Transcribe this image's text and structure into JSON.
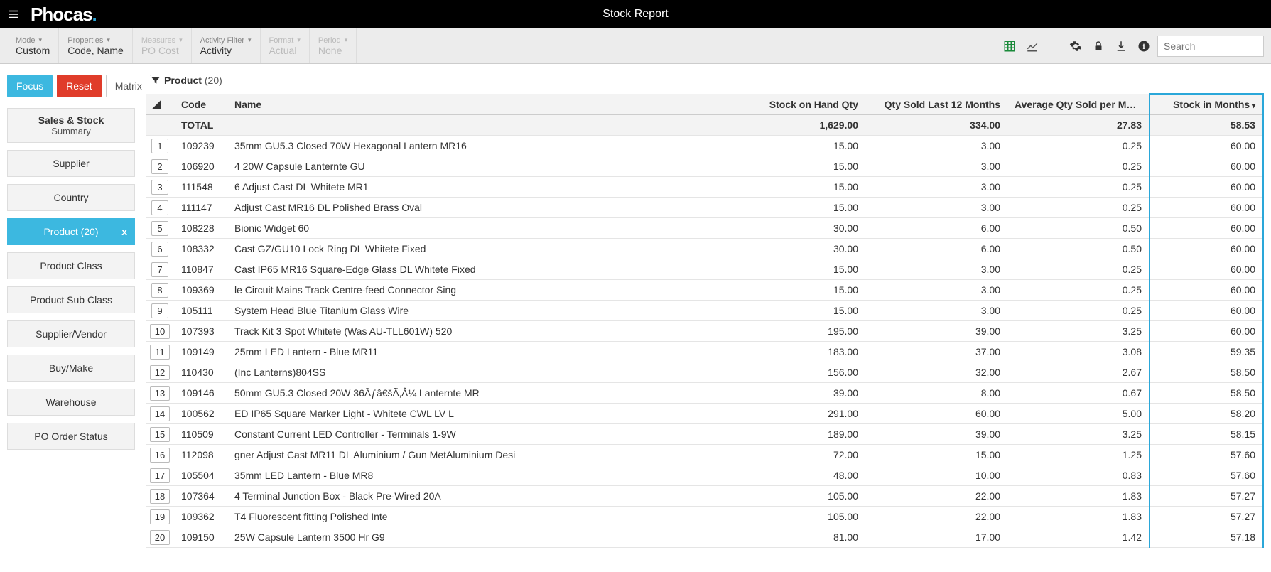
{
  "header": {
    "logo_text": "Phocas",
    "logo_accent": ".",
    "title": "Stock Report"
  },
  "toolbar": {
    "groups": [
      {
        "label": "Mode",
        "value": "Custom",
        "disabled": false
      },
      {
        "label": "Properties",
        "value": "Code, Name",
        "disabled": false
      },
      {
        "label": "Measures",
        "value": "PO Cost",
        "disabled": true
      },
      {
        "label": "Activity Filter",
        "value": "Activity",
        "disabled": false
      },
      {
        "label": "Format",
        "value": "Actual",
        "disabled": true
      },
      {
        "label": "Period",
        "value": "None",
        "disabled": true
      }
    ],
    "search_placeholder": "Search"
  },
  "buttons": {
    "focus": "Focus",
    "reset": "Reset",
    "matrix": "Matrix"
  },
  "sidebar": {
    "header_title": "Sales & Stock",
    "header_sub": "Summary",
    "items": [
      {
        "label": "Supplier",
        "active": false
      },
      {
        "label": "Country",
        "active": false
      },
      {
        "label": "Product (20)",
        "active": true
      },
      {
        "label": "Product Class",
        "active": false
      },
      {
        "label": "Product Sub Class",
        "active": false
      },
      {
        "label": "Supplier/Vendor",
        "active": false
      },
      {
        "label": "Buy/Make",
        "active": false
      },
      {
        "label": "Warehouse",
        "active": false
      },
      {
        "label": "PO Order Status",
        "active": false
      }
    ]
  },
  "filter": {
    "name": "Product",
    "count": "(20)"
  },
  "table": {
    "columns": [
      {
        "key": "rownum",
        "label": "◢",
        "type": "rownum"
      },
      {
        "key": "code",
        "label": "Code",
        "type": "text"
      },
      {
        "key": "name",
        "label": "Name",
        "type": "text"
      },
      {
        "key": "soh",
        "label": "Stock on Hand Qty",
        "type": "num"
      },
      {
        "key": "sold12",
        "label": "Qty Sold Last 12 Months",
        "type": "num"
      },
      {
        "key": "avgmo",
        "label": "Average Qty Sold per Month",
        "type": "num"
      },
      {
        "key": "sim",
        "label": "Stock in Months",
        "type": "num",
        "highlighted": true,
        "sort": true
      }
    ],
    "total": {
      "label": "TOTAL",
      "soh": "1,629.00",
      "sold12": "334.00",
      "avgmo": "27.83",
      "sim": "58.53"
    },
    "rows": [
      {
        "n": "1",
        "code": "109239",
        "name": "35mm GU5.3 Closed 70W Hexagonal Lantern MR16",
        "soh": "15.00",
        "sold12": "3.00",
        "avgmo": "0.25",
        "sim": "60.00"
      },
      {
        "n": "2",
        "code": "106920",
        "name": "4 20W Capsule Lanternte GU",
        "soh": "15.00",
        "sold12": "3.00",
        "avgmo": "0.25",
        "sim": "60.00"
      },
      {
        "n": "3",
        "code": "111548",
        "name": "6 Adjust Cast DL Whitete MR1",
        "soh": "15.00",
        "sold12": "3.00",
        "avgmo": "0.25",
        "sim": "60.00"
      },
      {
        "n": "4",
        "code": "111147",
        "name": "Adjust Cast MR16 DL Polished Brass Oval",
        "soh": "15.00",
        "sold12": "3.00",
        "avgmo": "0.25",
        "sim": "60.00"
      },
      {
        "n": "5",
        "code": "108228",
        "name": "Bionic Widget 60",
        "soh": "30.00",
        "sold12": "6.00",
        "avgmo": "0.50",
        "sim": "60.00"
      },
      {
        "n": "6",
        "code": "108332",
        "name": "Cast GZ/GU10 Lock Ring DL Whitete Fixed",
        "soh": "30.00",
        "sold12": "6.00",
        "avgmo": "0.50",
        "sim": "60.00"
      },
      {
        "n": "7",
        "code": "110847",
        "name": "Cast IP65 MR16 Square-Edge Glass DL Whitete Fixed",
        "soh": "15.00",
        "sold12": "3.00",
        "avgmo": "0.25",
        "sim": "60.00"
      },
      {
        "n": "8",
        "code": "109369",
        "name": "le Circuit Mains Track Centre-feed Connector Sing",
        "soh": "15.00",
        "sold12": "3.00",
        "avgmo": "0.25",
        "sim": "60.00"
      },
      {
        "n": "9",
        "code": "105111",
        "name": "System Head Blue Titanium Glass Wire",
        "soh": "15.00",
        "sold12": "3.00",
        "avgmo": "0.25",
        "sim": "60.00"
      },
      {
        "n": "10",
        "code": "107393",
        "name": "Track Kit 3 Spot Whitete (Was AU-TLL601W) 520",
        "soh": "195.00",
        "sold12": "39.00",
        "avgmo": "3.25",
        "sim": "60.00"
      },
      {
        "n": "11",
        "code": "109149",
        "name": "25mm LED Lantern - Blue MR11",
        "soh": "183.00",
        "sold12": "37.00",
        "avgmo": "3.08",
        "sim": "59.35"
      },
      {
        "n": "12",
        "code": "110430",
        "name": "(Inc Lanterns)804SS",
        "soh": "156.00",
        "sold12": "32.00",
        "avgmo": "2.67",
        "sim": "58.50"
      },
      {
        "n": "13",
        "code": "109146",
        "name": "50mm GU5.3 Closed 20W 36Ãƒâ€šÃ‚Â¼ Lanternte MR",
        "soh": "39.00",
        "sold12": "8.00",
        "avgmo": "0.67",
        "sim": "58.50"
      },
      {
        "n": "14",
        "code": "100562",
        "name": "ED IP65 Square Marker Light - Whitete CWL LV L",
        "soh": "291.00",
        "sold12": "60.00",
        "avgmo": "5.00",
        "sim": "58.20"
      },
      {
        "n": "15",
        "code": "110509",
        "name": "Constant Current LED Controller - Terminals 1-9W",
        "soh": "189.00",
        "sold12": "39.00",
        "avgmo": "3.25",
        "sim": "58.15"
      },
      {
        "n": "16",
        "code": "112098",
        "name": "gner Adjust Cast MR11 DL Aluminium / Gun MetAluminium Desi",
        "soh": "72.00",
        "sold12": "15.00",
        "avgmo": "1.25",
        "sim": "57.60"
      },
      {
        "n": "17",
        "code": "105504",
        "name": "35mm LED Lantern - Blue MR8",
        "soh": "48.00",
        "sold12": "10.00",
        "avgmo": "0.83",
        "sim": "57.60"
      },
      {
        "n": "18",
        "code": "107364",
        "name": "4 Terminal Junction Box - Black Pre-Wired 20A",
        "soh": "105.00",
        "sold12": "22.00",
        "avgmo": "1.83",
        "sim": "57.27"
      },
      {
        "n": "19",
        "code": "109362",
        "name": "T4 Fluorescent fitting Polished Inte",
        "soh": "105.00",
        "sold12": "22.00",
        "avgmo": "1.83",
        "sim": "57.27"
      },
      {
        "n": "20",
        "code": "109150",
        "name": "25W Capsule Lantern 3500 Hr G9",
        "soh": "81.00",
        "sold12": "17.00",
        "avgmo": "1.42",
        "sim": "57.18"
      }
    ]
  },
  "colors": {
    "accent": "#2aa7d9",
    "focus_btn": "#3cb8e0",
    "reset_btn": "#e03c2a",
    "highlight_border": "#2aa7d9"
  }
}
